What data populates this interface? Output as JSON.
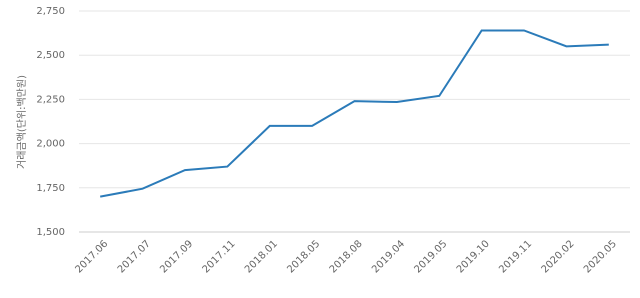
{
  "chart_data": {
    "type": "line",
    "y_label": "거래금액(단위:백만원)",
    "categories": [
      "2017.06",
      "2017.07",
      "2017.09",
      "2017.11",
      "2018.01",
      "2018.05",
      "2018.08",
      "2019.04",
      "2019.05",
      "2019.10",
      "2019.11",
      "2020.02",
      "2020.05"
    ],
    "values": [
      1700,
      1745,
      1850,
      1870,
      2100,
      2100,
      2240,
      2235,
      2270,
      2640,
      2640,
      2550,
      2560
    ],
    "color": "#2b7bb9",
    "ylim": [
      1500,
      2750
    ],
    "yticks": [
      {
        "value": 1500,
        "label": "1,500"
      },
      {
        "value": 1750,
        "label": "1,750"
      },
      {
        "value": 2000,
        "label": "2,000"
      },
      {
        "value": 2250,
        "label": "2,250"
      },
      {
        "value": 2500,
        "label": "2,500"
      },
      {
        "value": 2750,
        "label": "2,750"
      }
    ],
    "grid": true
  }
}
